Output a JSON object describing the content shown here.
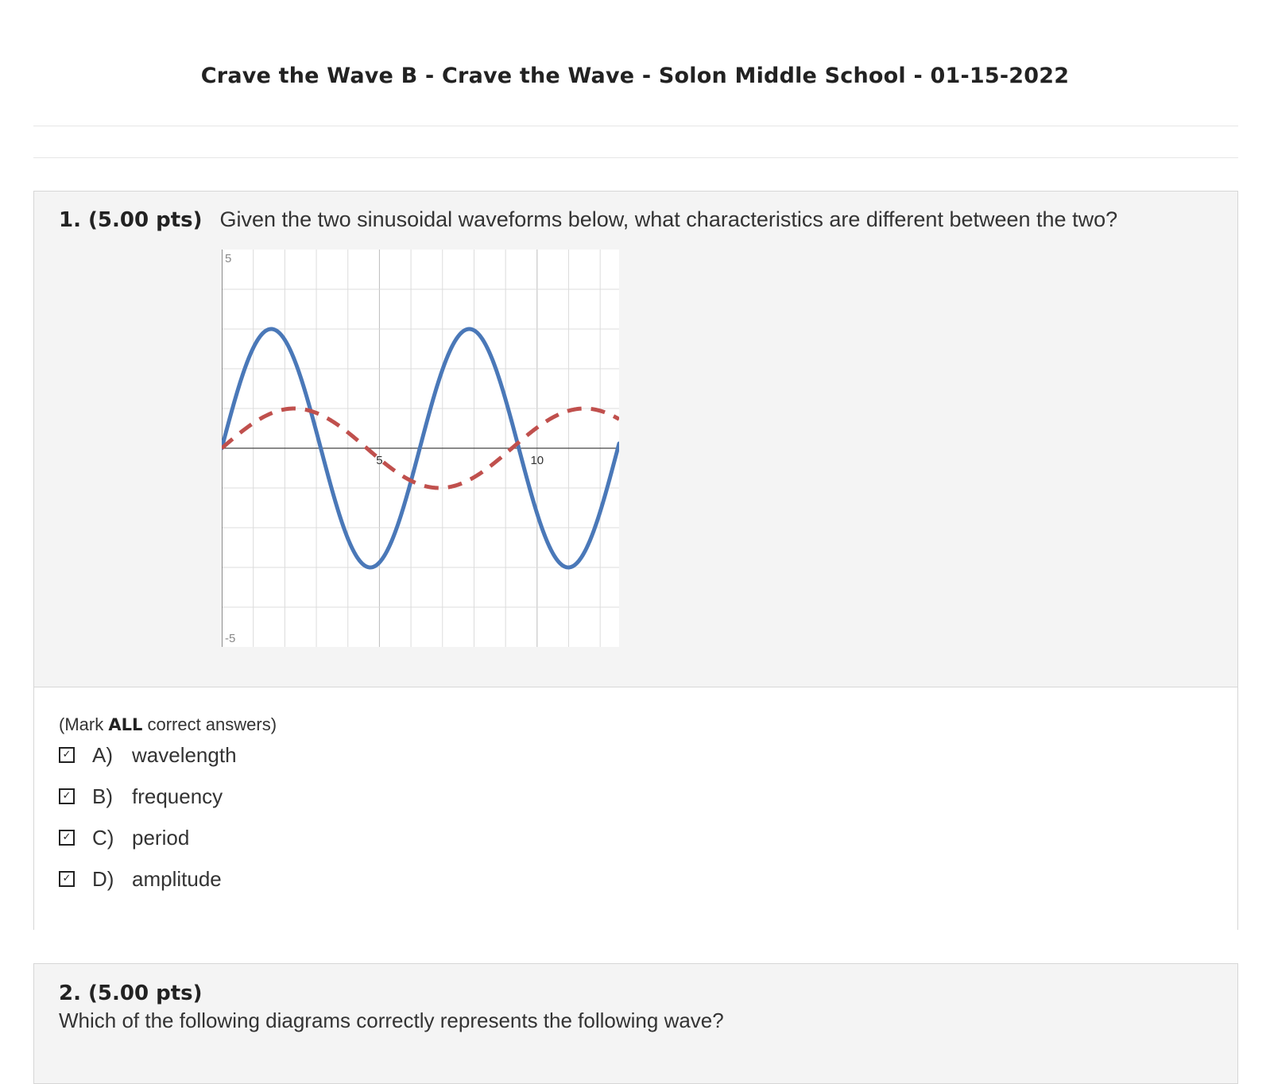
{
  "header": {
    "title": "Crave the Wave B - Crave the Wave - Solon Middle School - 01-15-2022"
  },
  "question1": {
    "number": "1. (5.00 pts)",
    "text": "Given the two sinusoidal waveforms below, what characteristics are different between the two?",
    "instruction_prefix": "(Mark ",
    "instruction_bold": "ALL",
    "instruction_suffix": " correct answers)",
    "options": [
      {
        "label": "A)",
        "text": "wavelength",
        "checked": true,
        "check_glyph": "✓"
      },
      {
        "label": "B)",
        "text": "frequency",
        "checked": true,
        "check_glyph": "✓"
      },
      {
        "label": "C)",
        "text": "period",
        "checked": true,
        "check_glyph": "✓"
      },
      {
        "label": "D)",
        "text": "amplitude",
        "checked": true,
        "check_glyph": "✓"
      }
    ]
  },
  "chart_data": {
    "type": "line",
    "xlim": [
      0,
      12.6
    ],
    "ylim": [
      -5,
      5
    ],
    "x_tick_labels": [
      "5",
      "10"
    ],
    "y_tick_labels": [
      "5",
      "-5"
    ],
    "grid": true,
    "series": [
      {
        "style": "solid",
        "color": "#4a78b8",
        "amplitude": 3,
        "wavelength": 6.28,
        "phase": 0
      },
      {
        "style": "dashed",
        "color": "#c0504d",
        "amplitude": 1,
        "wavelength": 9.2,
        "phase": 0
      }
    ]
  },
  "question2": {
    "number": "2. (5.00 pts)",
    "text": "Which of the following diagrams correctly represents the following wave?"
  }
}
